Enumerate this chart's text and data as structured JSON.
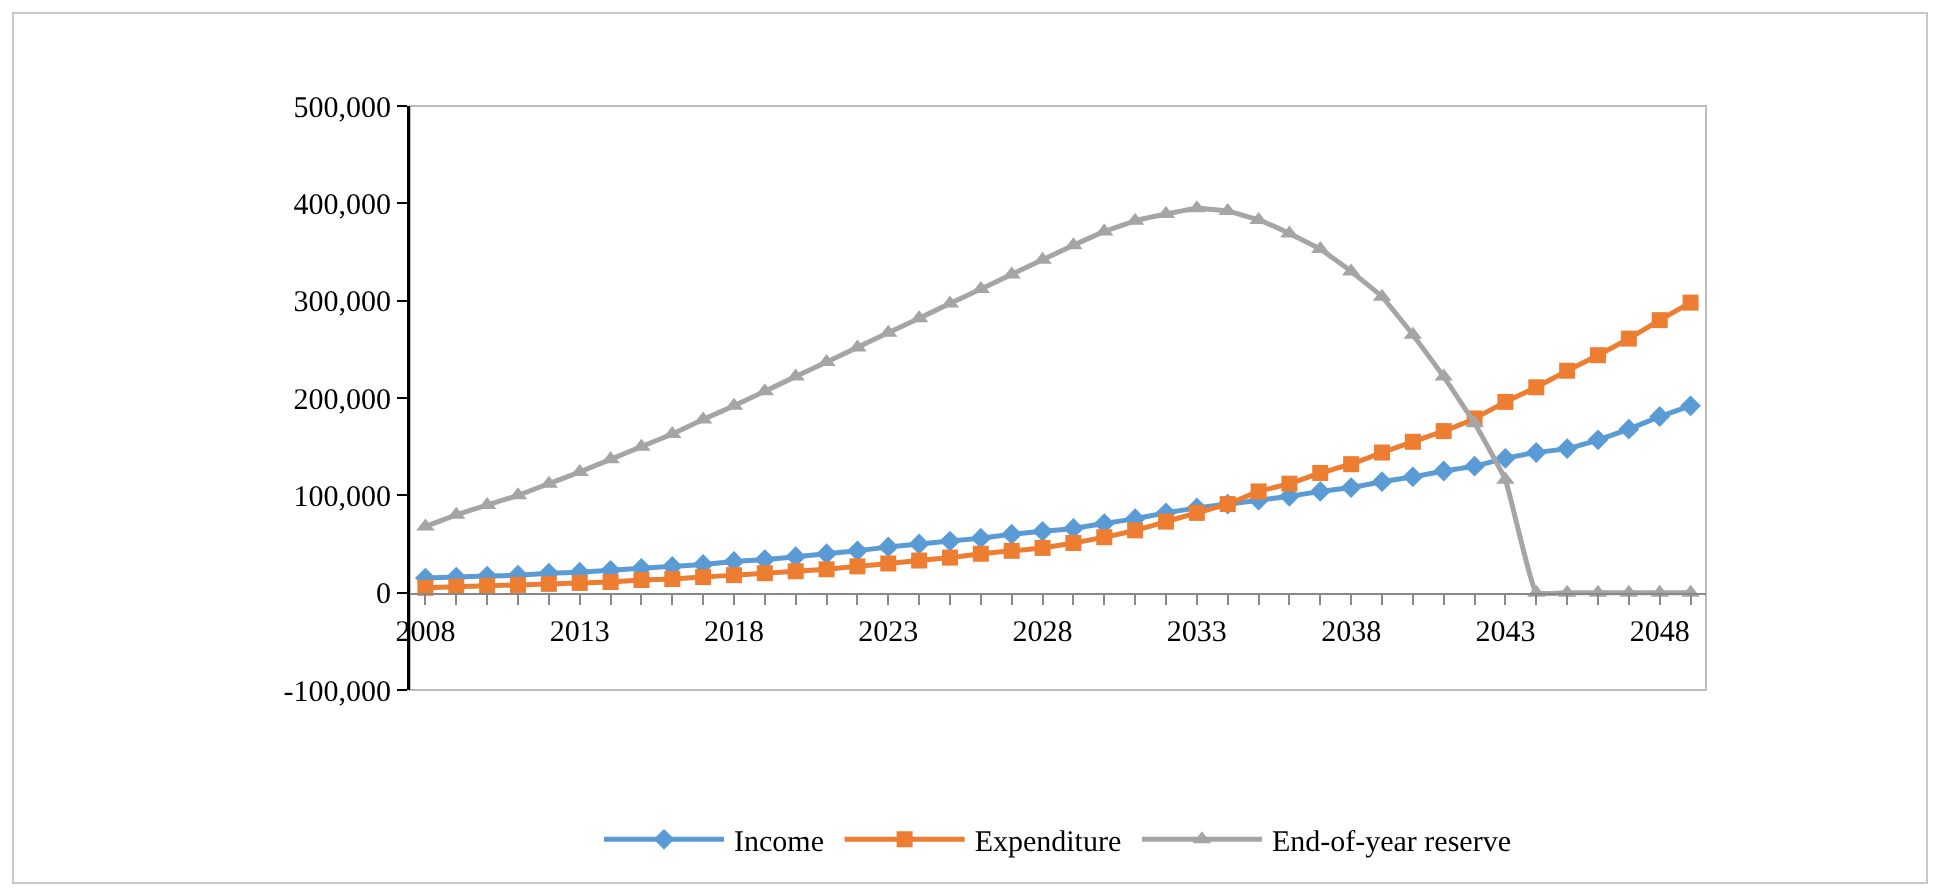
{
  "chart_data": {
    "type": "line",
    "x": [
      2008,
      2009,
      2010,
      2011,
      2012,
      2013,
      2014,
      2015,
      2016,
      2017,
      2018,
      2019,
      2020,
      2021,
      2022,
      2023,
      2024,
      2025,
      2026,
      2027,
      2028,
      2029,
      2030,
      2031,
      2032,
      2033,
      2034,
      2035,
      2036,
      2037,
      2038,
      2039,
      2040,
      2041,
      2042,
      2043,
      2044,
      2045,
      2046,
      2047,
      2048,
      2049
    ],
    "series": [
      {
        "name": "Income",
        "color": "#5b9bd5",
        "marker": "diamond",
        "values": [
          15000,
          16000,
          17000,
          18000,
          20000,
          21000,
          23000,
          25000,
          27000,
          29000,
          32000,
          34000,
          37000,
          40000,
          43000,
          47000,
          50000,
          53000,
          56000,
          60000,
          63000,
          66000,
          71000,
          76000,
          82000,
          87000,
          91000,
          95000,
          99000,
          104000,
          108000,
          114000,
          119000,
          125000,
          130000,
          138000,
          144000,
          148000,
          157000,
          168000,
          181000,
          192000
        ]
      },
      {
        "name": "Expenditure",
        "color": "#ed7d31",
        "marker": "square",
        "values": [
          5000,
          6000,
          7000,
          8000,
          9000,
          10000,
          11000,
          13000,
          14000,
          16000,
          18000,
          20000,
          22000,
          24000,
          27000,
          30000,
          33000,
          36000,
          40000,
          43000,
          46000,
          51000,
          57000,
          64000,
          73000,
          82000,
          91000,
          104000,
          112000,
          123000,
          132000,
          144000,
          155000,
          166000,
          179000,
          196000,
          211000,
          228000,
          244000,
          261000,
          280000,
          298000
        ]
      },
      {
        "name": "End-of-year reserve",
        "color": "#a5a5a5",
        "marker": "triangle",
        "values": [
          68000,
          80000,
          90000,
          100000,
          112000,
          124000,
          137000,
          150000,
          163000,
          178000,
          192000,
          207000,
          222000,
          237000,
          252000,
          267000,
          282000,
          297000,
          312000,
          327000,
          342000,
          357000,
          371000,
          382000,
          389000,
          395000,
          392000,
          383000,
          369000,
          353000,
          330000,
          304000,
          265000,
          222000,
          174000,
          116000,
          0,
          0,
          0,
          0,
          0,
          0
        ]
      }
    ],
    "xlim": [
      2007.5,
      2049.5
    ],
    "xticks": [
      2008,
      2013,
      2018,
      2023,
      2028,
      2033,
      2038,
      2043,
      2048
    ],
    "ylim": [
      -100000,
      500000
    ],
    "yticks": [
      {
        "value": -100000,
        "label": "-100,000"
      },
      {
        "value": 0,
        "label": "0"
      },
      {
        "value": 100000,
        "label": "100,000"
      },
      {
        "value": 200000,
        "label": "200,000"
      },
      {
        "value": 300000,
        "label": "300,000"
      },
      {
        "value": 400000,
        "label": "400,000"
      },
      {
        "value": 500000,
        "label": "500,000"
      }
    ],
    "grid": false,
    "legend": "bottom",
    "line_style": "solid"
  }
}
